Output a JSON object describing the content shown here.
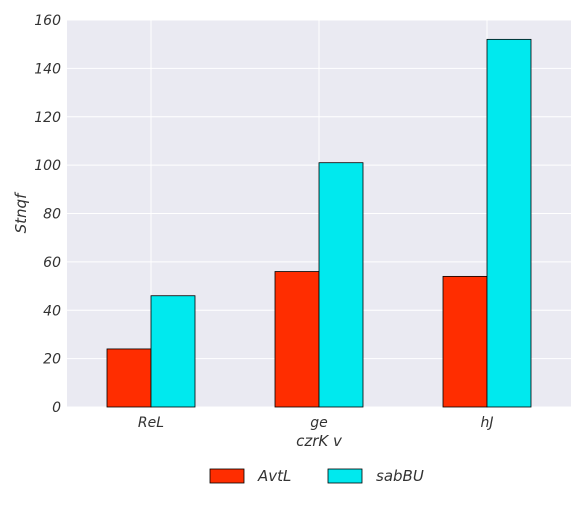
{
  "chart_data": {
    "type": "bar",
    "title": "",
    "xlabel": "czrK v",
    "ylabel": "Stnqf",
    "categories": [
      "ReL",
      "ge",
      "hJ"
    ],
    "series": [
      {
        "name": "AvtL",
        "values": [
          24,
          56,
          54
        ],
        "color": "#ff2d00"
      },
      {
        "name": "sabBU",
        "values": [
          46,
          101,
          152
        ],
        "color": "#00e9ee"
      }
    ],
    "ylim": [
      0,
      160
    ],
    "yticks": [
      0,
      20,
      40,
      60,
      80,
      100,
      120,
      140,
      160
    ],
    "grid": true,
    "legend_position": "bottom-center",
    "background": "#eaeaf2"
  }
}
